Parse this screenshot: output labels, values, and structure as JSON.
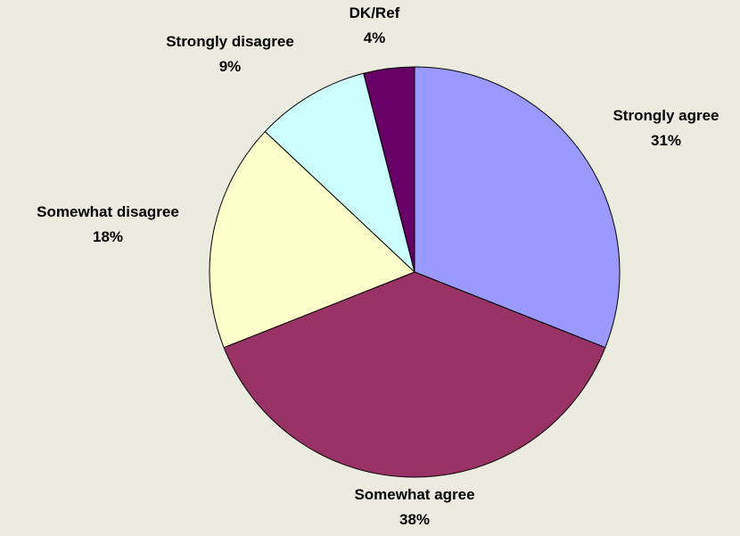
{
  "chart_data": {
    "type": "pie",
    "slices": [
      {
        "label": "Strongly agree",
        "value": 31,
        "value_label": "31%",
        "color": "#9999ff"
      },
      {
        "label": "Somewhat agree",
        "value": 38,
        "value_label": "38%",
        "color": "#993366"
      },
      {
        "label": "Somewhat disagree",
        "value": 18,
        "value_label": "18%",
        "color": "#ffffcc"
      },
      {
        "label": "Strongly disagree",
        "value": 9,
        "value_label": "9%",
        "color": "#ccffff"
      },
      {
        "label": "DK/Ref",
        "value": 4,
        "value_label": "4%",
        "color": "#660066"
      }
    ],
    "start_angle": "12 o'clock",
    "direction": "clockwise",
    "legend": "none",
    "background_color": "#ecebdf"
  }
}
